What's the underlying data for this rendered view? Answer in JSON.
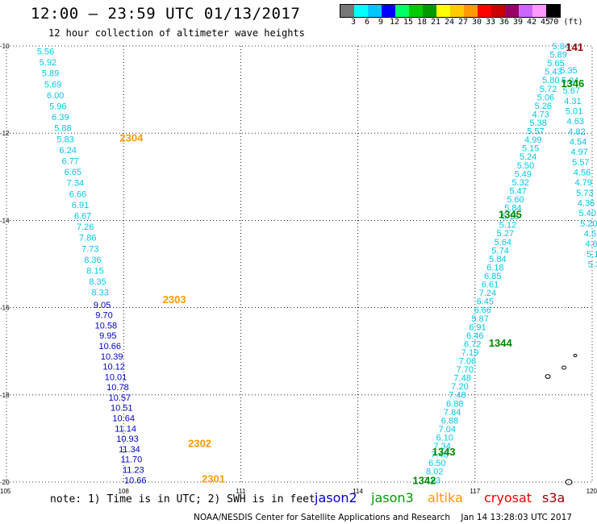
{
  "header": {
    "title": "12:00 – 23:59 UTC 01/13/2017",
    "subtitle": "12 hour collection of altimeter wave heights"
  },
  "colorbar": {
    "colors": [
      "#777777",
      "#00ffff",
      "#00c8ff",
      "#0000ff",
      "#00ff66",
      "#00cc00",
      "#009900",
      "#ffff00",
      "#ffcc00",
      "#ff9900",
      "#ff0000",
      "#cc0000",
      "#990066",
      "#cc66ff",
      "#ff99ff",
      "#000000"
    ],
    "labels": [
      "3",
      "6",
      "9",
      "12",
      "15",
      "18",
      "21",
      "24",
      "27",
      "30",
      "33",
      "36",
      "39",
      "42",
      "45",
      "70 (ft)"
    ]
  },
  "map": {
    "lat_ticks": [
      "-10",
      "-12",
      "-14",
      "-16",
      "-18",
      "-20"
    ],
    "lon_ticks": [
      "105",
      "108",
      "111",
      "114",
      "117",
      "120"
    ],
    "xlim": [
      105,
      120
    ],
    "ylim": [
      -20,
      -10
    ]
  },
  "tracks": [
    {
      "satellite": "altika",
      "color": "#00c8e6",
      "values": [
        "5.56",
        "5.92",
        "5.89",
        "5.69",
        "6.00",
        "5.96",
        "6.39",
        "5.88",
        "5.83",
        "6.24",
        "6.77",
        "6.65",
        "7.34",
        "6.66",
        "6.91",
        "6.67",
        "7.26",
        "7.86",
        "7.73",
        "8.36",
        "8.15",
        "8.35",
        "8.33"
      ],
      "start": [
        106.0,
        -10.12
      ],
      "end": [
        107.4,
        -15.65
      ]
    },
    {
      "satellite": "jason2",
      "color": "#0000cc",
      "values": [
        "9.05",
        "9.70",
        "10.58",
        "9.95",
        "10.66",
        "10.39",
        "10.12",
        "10.01",
        "10.78",
        "10.57",
        "10.51",
        "10.64",
        "11.14",
        "10.93",
        "11.34",
        "11.70",
        "11.23",
        "10.66"
      ],
      "start": [
        107.45,
        -15.93
      ],
      "end": [
        108.3,
        -19.95
      ]
    },
    {
      "satellite": "altika",
      "color": "#00c8e6",
      "values": [
        "5.84",
        "5.89",
        "5.65",
        "5.43",
        "5.80",
        "5.72",
        "5.06",
        "5.26",
        "4.73",
        "5.38",
        "5.57",
        "4.99",
        "5.15",
        "5.24",
        "5.50",
        "5.49",
        "5.32",
        "5.47",
        "5.60",
        "5.84",
        "5.15",
        "5.12",
        "5.27",
        "5.64",
        "5.74",
        "5.84",
        "6.18",
        "6.85",
        "6.61",
        "7.24",
        "6.45",
        "6.66",
        "5.87",
        "6.91",
        "6.46",
        "6.72",
        "7.19",
        "7.06",
        "7.70",
        "7.48",
        "7.20",
        "7.48",
        "6.88",
        "7.84",
        "6.88",
        "7.04",
        "6.10",
        "7.34",
        "7.48",
        "6.50",
        "8.02",
        "7.83"
      ],
      "start": [
        119.2,
        -10.0
      ],
      "end": [
        115.9,
        -19.95
      ]
    },
    {
      "satellite": "altika",
      "color": "#00c8e6",
      "values": [
        "5.35",
        "5.04",
        "5.67",
        "4.31",
        "5.01",
        "4.63",
        "4.82",
        "4.54",
        "4.97",
        "5.57",
        "4.56",
        "4.79",
        "5.73",
        "4.36",
        "5.40",
        "5.20",
        "4.5",
        "4.6",
        "5.1",
        "5.3"
      ],
      "start": [
        119.4,
        -10.55
      ],
      "end": [
        120.05,
        -15.0
      ]
    }
  ],
  "pass_labels": [
    {
      "text": "2304",
      "color": "#ff9900",
      "lon": 108.2,
      "lat": -12.1
    },
    {
      "text": "2303",
      "color": "#ff9900",
      "lon": 109.3,
      "lat": -15.8
    },
    {
      "text": "2302",
      "color": "#ff9900",
      "lon": 109.95,
      "lat": -19.1
    },
    {
      "text": "2301",
      "color": "#ff9900",
      "lon": 110.3,
      "lat": -19.92
    },
    {
      "text": "141",
      "color": "#990000",
      "lon": 119.55,
      "lat": -10.02
    },
    {
      "text": "1346",
      "color": "#008800",
      "lon": 119.5,
      "lat": -10.85
    },
    {
      "text": "1345",
      "color": "#008800",
      "lon": 117.9,
      "lat": -13.85
    },
    {
      "text": "1344",
      "color": "#008800",
      "lon": 117.65,
      "lat": -16.8
    },
    {
      "text": "1343",
      "color": "#008800",
      "lon": 116.2,
      "lat": -19.3
    },
    {
      "text": "1342",
      "color": "#008800",
      "lon": 115.7,
      "lat": -19.95
    }
  ],
  "footer": {
    "note": "note: 1) Time is in UTC; 2) SWH is in feet",
    "legend": [
      {
        "name": "jason2",
        "color": "#0000cc"
      },
      {
        "name": "jason3",
        "color": "#009900"
      },
      {
        "name": "altika",
        "color": "#ff9900"
      },
      {
        "name": "cryosat",
        "color": "#ee0000"
      },
      {
        "name": "s3a",
        "color": "#990000"
      }
    ],
    "credit": "NOAA/NESDIS Center for Satellite Applications and Research    Jan 14 13:28:03 UTC 2017"
  }
}
